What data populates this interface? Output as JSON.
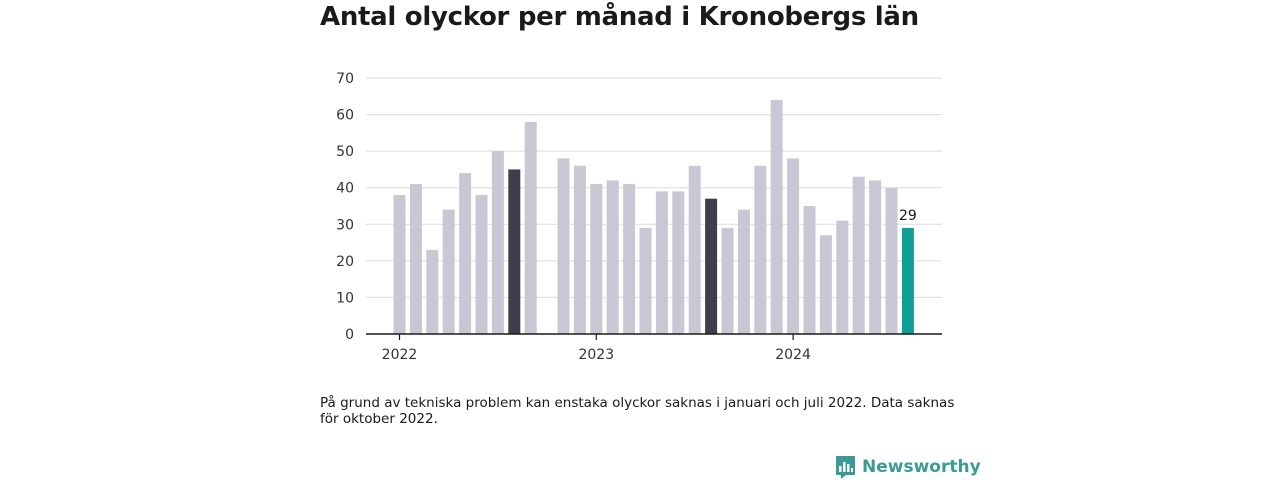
{
  "chart_data": {
    "type": "bar",
    "title": "Antal olyckor per månad i Kronobergs län",
    "xlabel": "",
    "ylabel": "",
    "ylim": [
      0,
      70
    ],
    "yticks": [
      0,
      10,
      20,
      30,
      40,
      50,
      60,
      70
    ],
    "grid": true,
    "x_tick_labels": [
      "2022",
      "2023",
      "2024"
    ],
    "categories": [
      "2022-01",
      "2022-02",
      "2022-03",
      "2022-04",
      "2022-05",
      "2022-06",
      "2022-07",
      "2022-08",
      "2022-09",
      "2022-10",
      "2022-11",
      "2022-12",
      "2023-01",
      "2023-02",
      "2023-03",
      "2023-04",
      "2023-05",
      "2023-06",
      "2023-07",
      "2023-08",
      "2023-09",
      "2023-10",
      "2023-11",
      "2023-12",
      "2024-01",
      "2024-02",
      "2024-03",
      "2024-04",
      "2024-05",
      "2024-06",
      "2024-07",
      "2024-08"
    ],
    "values": [
      38,
      41,
      23,
      34,
      44,
      38,
      50,
      45,
      58,
      null,
      48,
      46,
      41,
      42,
      41,
      29,
      39,
      39,
      46,
      37,
      29,
      34,
      46,
      64,
      48,
      35,
      27,
      31,
      43,
      42,
      40,
      29
    ],
    "highlight_dark": [
      "2022-08",
      "2023-08"
    ],
    "highlight_accent": [
      "2024-08"
    ],
    "data_labels": [
      {
        "category": "2024-08",
        "text": "29"
      }
    ],
    "colors": {
      "default": "#c9c7d3",
      "dark": "#3f3e4c",
      "accent": "#0f9e95",
      "grid": "#dcdcdc",
      "axis": "#1a1a1a"
    }
  },
  "footnote": "På grund av tekniska problem kan enstaka olyckor saknas i januari och juli 2022. Data saknas för oktober 2022.",
  "brand": {
    "name": "Newsworthy",
    "icon": "bar-chart-bubble-icon",
    "color": "#3b9a95"
  }
}
